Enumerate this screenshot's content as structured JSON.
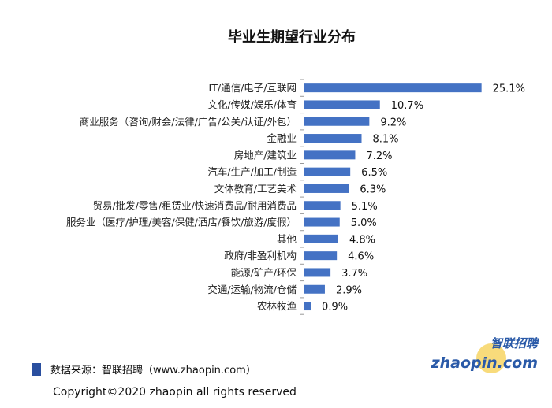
{
  "chart_data": {
    "type": "bar",
    "orientation": "horizontal",
    "title": "毕业生期望行业分布",
    "categories": [
      "IT/通信/电子/互联网",
      "文化/传媒/娱乐/体育",
      "商业服务（咨询/财会/法律/广告/公关/认证/外包）",
      "金融业",
      "房地产/建筑业",
      "汽车/生产/加工/制造",
      "文体教育/工艺美术",
      "贸易/批发/零售/租赁业/快速消费品/耐用消费品",
      "服务业（医疗/护理/美容/保健/酒店/餐饮/旅游/度假）",
      "其他",
      "政府/非盈利机构",
      "能源/矿产/环保",
      "交通/运输/物流/仓储",
      "农林牧渔"
    ],
    "values": [
      25.1,
      10.7,
      9.2,
      8.1,
      7.2,
      6.5,
      6.3,
      5.1,
      5.0,
      4.8,
      4.6,
      3.7,
      2.9,
      0.9
    ],
    "value_labels": [
      "25.1%",
      "10.7%",
      "9.2%",
      "8.1%",
      "7.2%",
      "6.5%",
      "6.3%",
      "5.1%",
      "5.0%",
      "4.8%",
      "4.6%",
      "3.7%",
      "2.9%",
      "0.9%"
    ],
    "unit": "%",
    "bar_color": "#4472C4",
    "grid": false
  },
  "footer": {
    "source": "数据来源：智联招聘（www.zhaopin.com）",
    "copyright": "Copyright©2020  zhaopin all rights  reserved",
    "logo_cn": "智联招聘",
    "logo_en": "zhaopin.com"
  }
}
